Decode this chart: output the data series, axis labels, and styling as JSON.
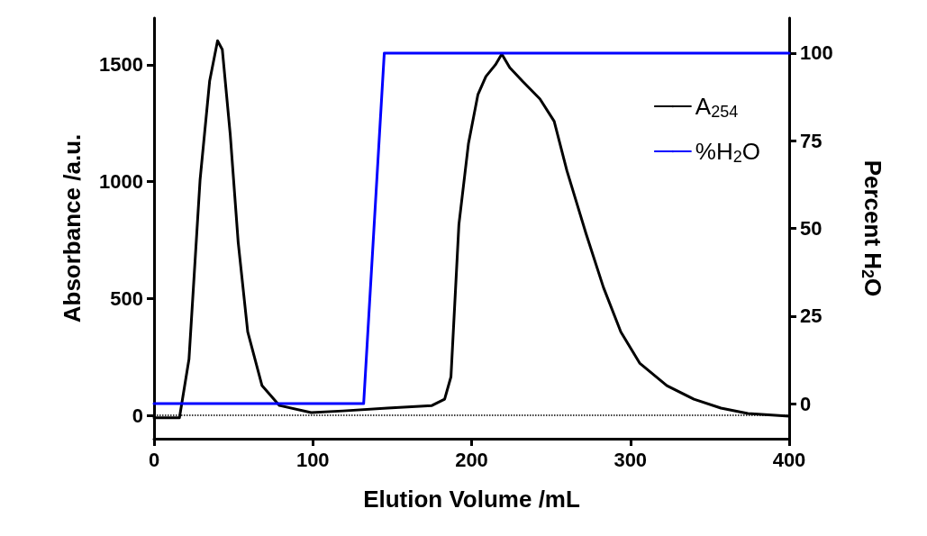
{
  "chart_data": {
    "type": "line",
    "xlabel": "Elution Volume /mL",
    "ylabel": "Absorbance /a.u.",
    "y2label": "Percent H$_{2}$O",
    "xlim": [
      0,
      400
    ],
    "xticks": [
      0,
      100,
      200,
      300,
      400
    ],
    "ylim": [
      -100,
      1700
    ],
    "yticks": [
      0,
      500,
      1000,
      1500
    ],
    "y2lim": [
      -10,
      110
    ],
    "y2ticks": [
      0,
      25,
      50,
      75,
      100
    ],
    "grid": false,
    "legend": "top right",
    "marker": "none",
    "line_style": "solid",
    "ref_lines": [
      {
        "axis": "y",
        "value": 0,
        "color": "#000000",
        "line_style": "dotted"
      }
    ],
    "series": [
      {
        "name": "A$_{254}$",
        "color": "#000000",
        "x": [
          0,
          16,
          22,
          29,
          35,
          40,
          43,
          48,
          53,
          59,
          68,
          79,
          99,
          119,
          147,
          175,
          183,
          187,
          192,
          198,
          204,
          209,
          215,
          219,
          224,
          232,
          243,
          252,
          260,
          272,
          283,
          294,
          306,
          323,
          340,
          357,
          374,
          400
        ],
        "values": [
          -10,
          -10,
          240,
          1009,
          1430,
          1603,
          1565,
          1200,
          740,
          357,
          127,
          42,
          12,
          19,
          31,
          42,
          69,
          165,
          817,
          1162,
          1373,
          1450,
          1500,
          1546,
          1488,
          1430,
          1354,
          1258,
          1047,
          779,
          548,
          357,
          222,
          127,
          69,
          31,
          8,
          -4
        ]
      },
      {
        "name": "%H$_{2}$O",
        "color": "#0000ff",
        "axis": "y2",
        "x": [
          0,
          132,
          145,
          400
        ],
        "values": [
          0,
          0,
          100,
          100
        ]
      }
    ]
  }
}
